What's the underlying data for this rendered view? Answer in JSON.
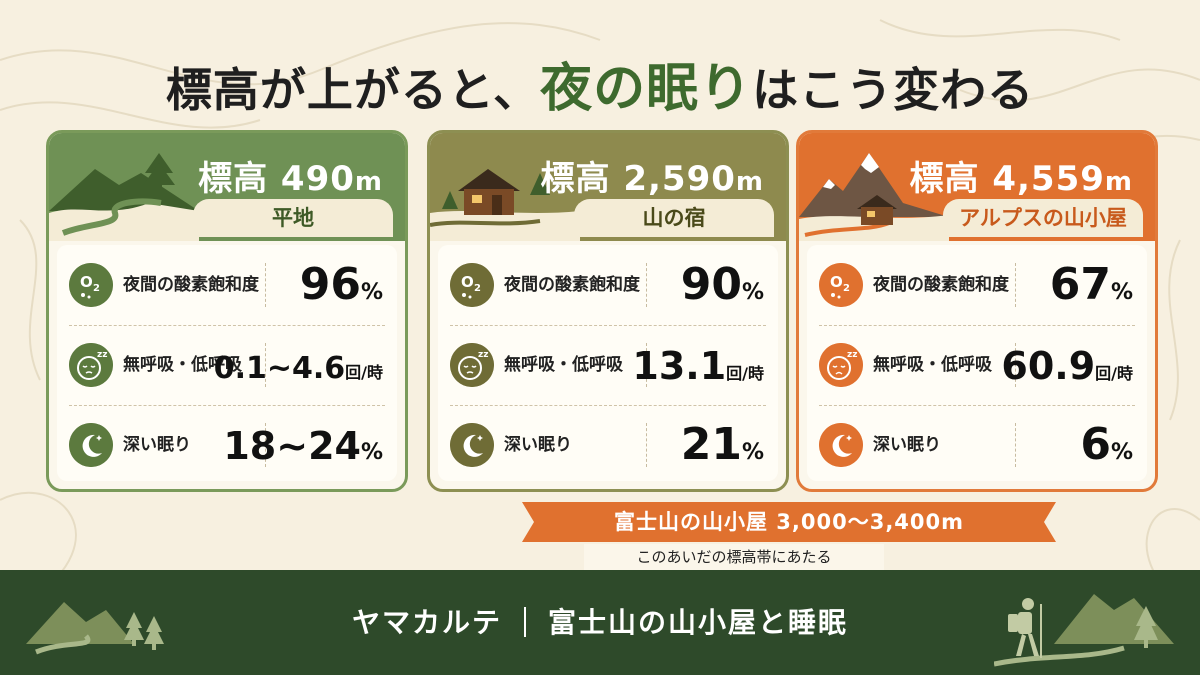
{
  "title": {
    "part1": "標高が上がると、",
    "highlight": "夜の眠り",
    "part2": "はこう変わる"
  },
  "cards": [
    {
      "elevation_prefix": "標高 ",
      "elevation_value": "490",
      "elevation_unit": "m",
      "location": "平地",
      "color": "#6f9155",
      "rows": [
        {
          "icon": "oxygen-icon",
          "label": "夜間の酸素飽和度",
          "value": "96",
          "unit": "%"
        },
        {
          "icon": "sleeping-face-icon",
          "label": "無呼吸・低呼吸",
          "value": "0.1~4.6",
          "unit": "回/時"
        },
        {
          "icon": "moon-icon",
          "label": "深い眠り",
          "value": "18~24",
          "unit": "%"
        }
      ]
    },
    {
      "elevation_prefix": "標高 ",
      "elevation_value": "2,590",
      "elevation_unit": "m",
      "location": "山の宿",
      "color": "#8e8a4e",
      "rows": [
        {
          "icon": "oxygen-icon",
          "label": "夜間の酸素飽和度",
          "value": "90",
          "unit": "%"
        },
        {
          "icon": "sleeping-face-icon",
          "label": "無呼吸・低呼吸",
          "value": "13.1",
          "unit": "回/時"
        },
        {
          "icon": "moon-icon",
          "label": "深い眠り",
          "value": "21",
          "unit": "%"
        }
      ]
    },
    {
      "elevation_prefix": "標高 ",
      "elevation_value": "4,559",
      "elevation_unit": "m",
      "location": "アルプスの山小屋",
      "color": "#e0712f",
      "rows": [
        {
          "icon": "oxygen-icon",
          "label": "夜間の酸素飽和度",
          "value": "67",
          "unit": "%"
        },
        {
          "icon": "sleeping-face-icon",
          "label": "無呼吸・低呼吸",
          "value": "60.9",
          "unit": "回/時"
        },
        {
          "icon": "moon-icon",
          "label": "深い眠り",
          "value": "6",
          "unit": "%"
        }
      ]
    }
  ],
  "banner": {
    "text": "富士山の山小屋 3,000～3,400m",
    "note": "このあいだの標高帯にあたる",
    "color": "#e0712f"
  },
  "footer": {
    "brand": "ヤマカルテ",
    "subtitle": "富士山の山小屋と睡眠",
    "color": "#2e4a2a"
  }
}
